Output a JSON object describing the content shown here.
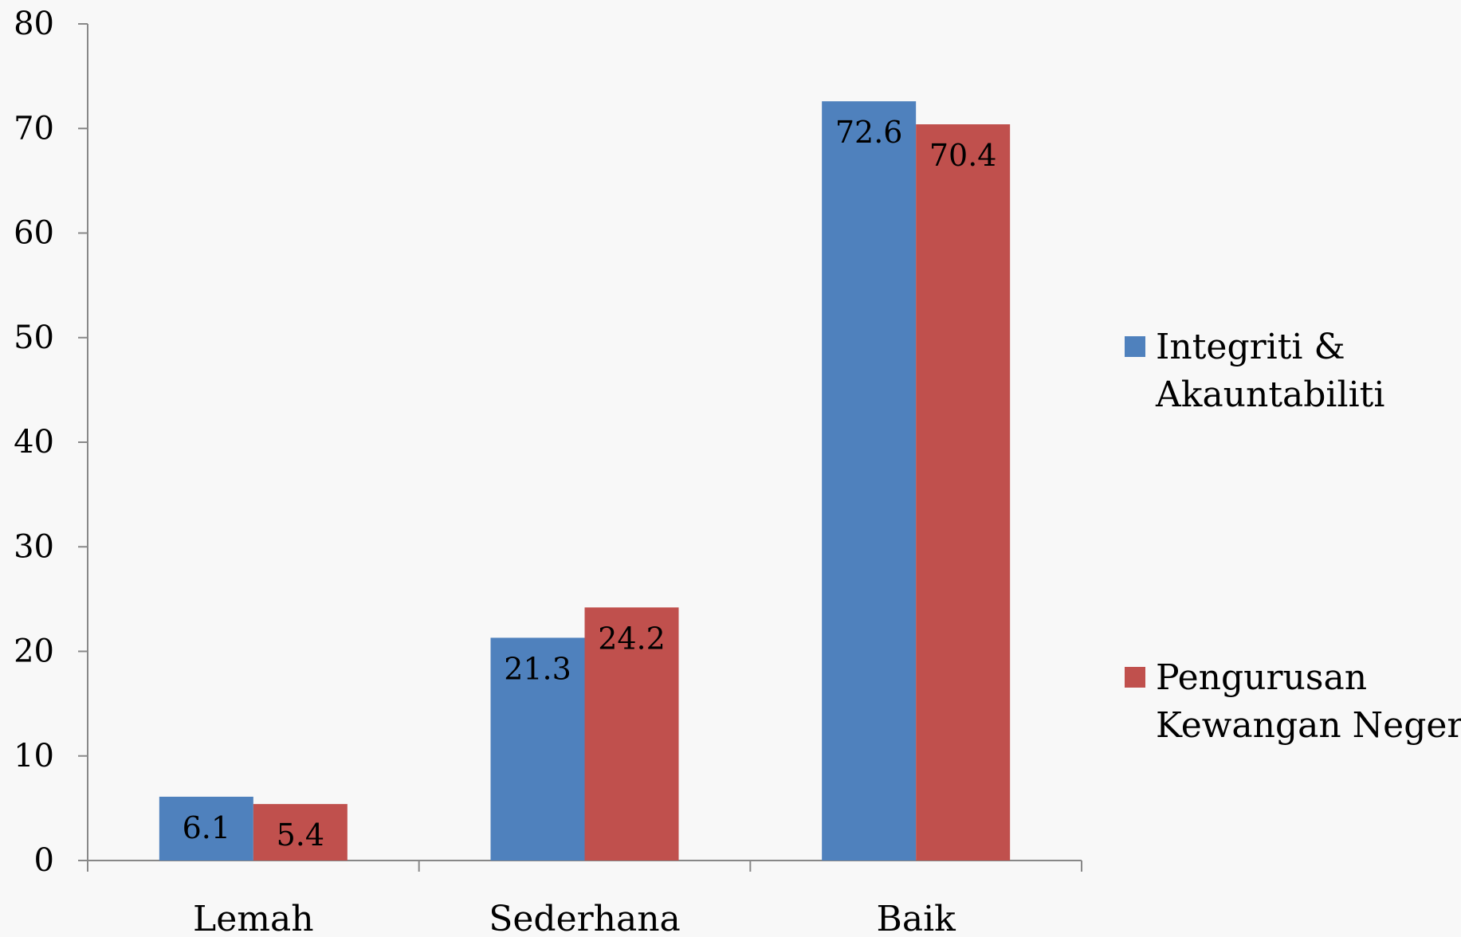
{
  "chart_data": {
    "type": "bar",
    "categories": [
      "Lemah",
      "Sederhana",
      "Baik"
    ],
    "series": [
      {
        "name": "Integriti & Akauntabiliti",
        "name_lines": [
          "Integriti &",
          "Akauntabiliti"
        ],
        "values": [
          6.1,
          21.3,
          72.6
        ],
        "labels": [
          "6.1",
          "21.3",
          "72.6"
        ],
        "color": "#4f81bd"
      },
      {
        "name": "Pengurusan Kewangan Negeri",
        "name_lines": [
          "Pengurusan",
          "Kewangan Negeri"
        ],
        "values": [
          5.4,
          24.2,
          70.4
        ],
        "labels": [
          "5.4",
          "24.2",
          "70.4"
        ],
        "color": "#c0504d"
      }
    ],
    "ylim": [
      0,
      80
    ],
    "yticks": [
      "0",
      "10",
      "20",
      "30",
      "40",
      "50",
      "60",
      "70",
      "80"
    ],
    "title": "",
    "xlabel": "",
    "ylabel": "",
    "grid": false,
    "legend_position": "right"
  }
}
